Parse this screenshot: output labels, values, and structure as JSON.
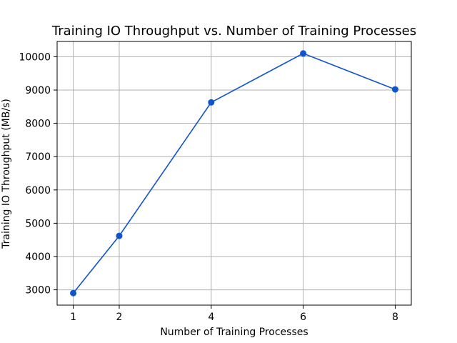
{
  "chart_data": {
    "type": "line",
    "title": "Training IO Throughput vs. Number of Training Processes",
    "xlabel": "Number of Training Processes",
    "ylabel": "Training IO Throughput (MB/s)",
    "x": [
      1,
      2,
      4,
      6,
      8
    ],
    "xticks": [
      "1",
      "2",
      "4",
      "6",
      "8"
    ],
    "xlim": [
      0.65,
      8.35
    ],
    "yticks": [
      "3000",
      "4000",
      "5000",
      "6000",
      "7000",
      "8000",
      "9000",
      "10000"
    ],
    "ylim": [
      2540,
      10460
    ],
    "grid": true,
    "series": [
      {
        "values": [
          2900,
          4620,
          8630,
          10100,
          9020
        ],
        "color": "#1155cc",
        "marker": "circle"
      }
    ]
  }
}
